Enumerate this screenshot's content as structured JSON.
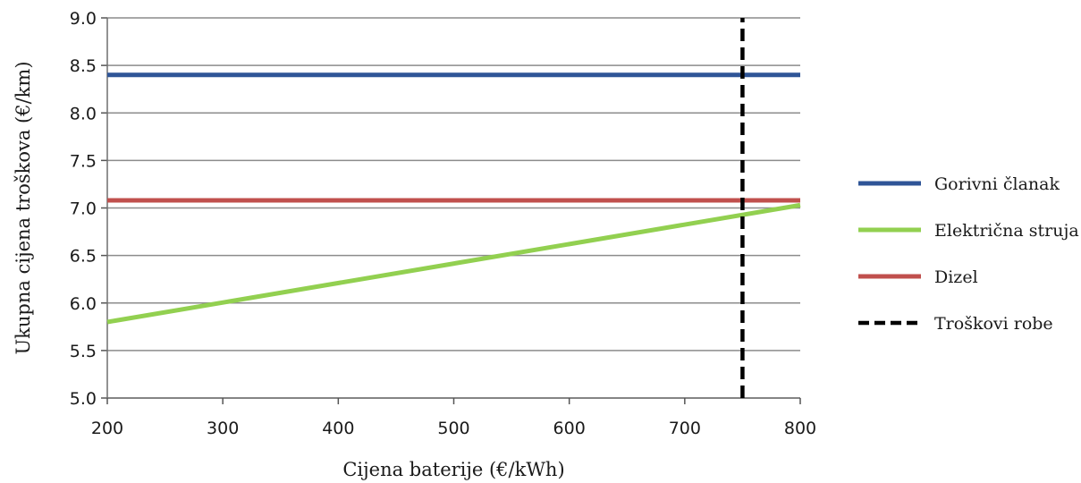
{
  "chart_data": {
    "type": "line",
    "title": "",
    "xlabel": "Cijena baterije (€/kWh)",
    "ylabel": "Ukupna cijena troškova (€/km)",
    "xlim": [
      200,
      800
    ],
    "ylim": [
      5.0,
      9.0
    ],
    "x_ticks": [
      "200",
      "300",
      "400",
      "500",
      "600",
      "700",
      "800"
    ],
    "y_ticks": [
      "5.0",
      "5.5",
      "6.0",
      "6.5",
      "7.0",
      "7.5",
      "8.0",
      "8.5",
      "9.0"
    ],
    "grid": "horizontal",
    "legend_position": "right",
    "series": [
      {
        "name": "Gorivni članak",
        "color": "#2f5597",
        "style": "solid",
        "x": [
          200,
          800
        ],
        "y": [
          8.4,
          8.4
        ]
      },
      {
        "name": "Električna struja",
        "color": "#92d050",
        "style": "solid",
        "x": [
          200,
          800
        ],
        "y": [
          5.8,
          7.03
        ]
      },
      {
        "name": "Dizel",
        "color": "#c0504d",
        "style": "solid",
        "x": [
          200,
          800
        ],
        "y": [
          7.08,
          7.08
        ]
      },
      {
        "name": "Troškovi robe",
        "color": "#000000",
        "style": "dashed",
        "x": [
          750,
          750
        ],
        "y": [
          5.0,
          9.0
        ]
      }
    ]
  }
}
